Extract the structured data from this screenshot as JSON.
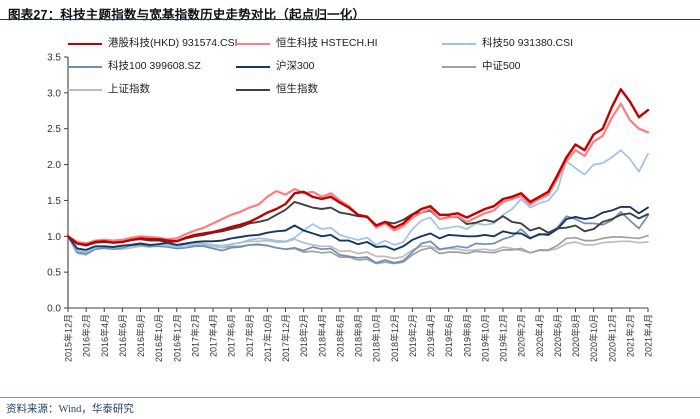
{
  "header": {
    "title": "图表27：科技主题指数与宽基指数历史走势对比（起点归一化）"
  },
  "footer": {
    "source_label": "资料来源：Wind，华泰研究"
  },
  "colors": {
    "title_rule": "#17375E",
    "axis": "#404040",
    "tick_label": "#333333",
    "footer_rule": "#8496A9",
    "footer_text": "#24456E"
  },
  "chart_data": {
    "type": "line",
    "title": "科技主题指数与宽基指数历史走势对比（起点归一化）",
    "xlabel": "",
    "ylabel": "",
    "ylim": [
      0.0,
      3.5
    ],
    "grid": false,
    "legend_position": "top",
    "y_tick_labels": [
      "0.0",
      "0.5",
      "1.0",
      "1.5",
      "2.0",
      "2.5",
      "3.0",
      "3.5"
    ],
    "x_tick_labels": [
      "2015年12月",
      "2016年2月",
      "2016年4月",
      "2016年6月",
      "2016年8月",
      "2016年10月",
      "2016年12月",
      "2017年2月",
      "2017年4月",
      "2017年6月",
      "2017年8月",
      "2017年10月",
      "2017年12月",
      "2018年2月",
      "2018年4月",
      "2018年6月",
      "2018年8月",
      "2018年10月",
      "2018年12月",
      "2019年2月",
      "2019年4月",
      "2019年6月",
      "2019年8月",
      "2019年10月",
      "2019年12月",
      "2020年2月",
      "2020年4月",
      "2020年6月",
      "2020年8月",
      "2020年10月",
      "2020年12月",
      "2021年2月",
      "2021年4月"
    ],
    "x_is_monthly_from": "2015年12月",
    "x_label_every_n_points": 2,
    "series": [
      {
        "name": "港股科技(HKD) 931574.CSI",
        "color": "#C00000",
        "width": 2.4,
        "values": [
          1.0,
          0.9,
          0.88,
          0.92,
          0.93,
          0.91,
          0.92,
          0.95,
          0.97,
          0.96,
          0.96,
          0.94,
          0.93,
          0.98,
          1.02,
          1.04,
          1.06,
          1.09,
          1.13,
          1.16,
          1.2,
          1.26,
          1.33,
          1.38,
          1.45,
          1.6,
          1.62,
          1.55,
          1.52,
          1.55,
          1.47,
          1.4,
          1.3,
          1.27,
          1.15,
          1.2,
          1.12,
          1.18,
          1.3,
          1.38,
          1.42,
          1.3,
          1.3,
          1.32,
          1.26,
          1.32,
          1.38,
          1.42,
          1.52,
          1.55,
          1.6,
          1.48,
          1.55,
          1.62,
          1.85,
          2.1,
          2.28,
          2.2,
          2.42,
          2.5,
          2.8,
          3.05,
          2.88,
          2.66,
          2.76
        ]
      },
      {
        "name": "恒生科技 HSTECH.HI",
        "color": "#FF7C80",
        "width": 2.2,
        "values": [
          1.0,
          0.92,
          0.9,
          0.94,
          0.95,
          0.94,
          0.95,
          0.98,
          1.0,
          0.99,
          0.98,
          0.96,
          0.97,
          1.03,
          1.08,
          1.12,
          1.18,
          1.24,
          1.3,
          1.34,
          1.4,
          1.44,
          1.55,
          1.63,
          1.58,
          1.66,
          1.6,
          1.62,
          1.55,
          1.6,
          1.5,
          1.42,
          1.3,
          1.28,
          1.12,
          1.18,
          1.08,
          1.14,
          1.26,
          1.33,
          1.38,
          1.24,
          1.26,
          1.28,
          1.2,
          1.26,
          1.32,
          1.36,
          1.48,
          1.52,
          1.56,
          1.44,
          1.52,
          1.58,
          1.8,
          2.05,
          2.2,
          2.12,
          2.32,
          2.4,
          2.65,
          2.85,
          2.62,
          2.5,
          2.45
        ]
      },
      {
        "name": "科技50 931380.CSI",
        "color": "#9DC3E6",
        "width": 1.7,
        "values": [
          1.0,
          0.8,
          0.78,
          0.84,
          0.86,
          0.84,
          0.86,
          0.89,
          0.9,
          0.88,
          0.88,
          0.87,
          0.85,
          0.87,
          0.89,
          0.89,
          0.86,
          0.84,
          0.89,
          0.91,
          0.95,
          0.97,
          0.96,
          0.94,
          0.93,
          0.98,
          1.08,
          1.17,
          1.1,
          1.12,
          1.02,
          0.98,
          0.95,
          0.98,
          0.88,
          0.94,
          0.88,
          0.92,
          1.1,
          1.22,
          1.26,
          1.1,
          1.12,
          1.14,
          1.1,
          1.18,
          1.16,
          1.18,
          1.3,
          1.38,
          1.52,
          1.4,
          1.46,
          1.5,
          1.65,
          2.05,
          1.95,
          1.86,
          2.0,
          2.02,
          2.1,
          2.2,
          2.08,
          1.9,
          2.15
        ]
      },
      {
        "name": "科技100 399608.SZ",
        "color": "#6F8EB5",
        "width": 1.7,
        "values": [
          1.0,
          0.78,
          0.76,
          0.82,
          0.84,
          0.82,
          0.84,
          0.87,
          0.88,
          0.86,
          0.86,
          0.85,
          0.83,
          0.84,
          0.86,
          0.86,
          0.83,
          0.8,
          0.84,
          0.85,
          0.88,
          0.89,
          0.87,
          0.84,
          0.82,
          0.84,
          0.8,
          0.85,
          0.82,
          0.83,
          0.74,
          0.72,
          0.7,
          0.71,
          0.63,
          0.67,
          0.63,
          0.66,
          0.78,
          0.9,
          0.93,
          0.82,
          0.84,
          0.86,
          0.84,
          0.9,
          0.89,
          0.9,
          0.96,
          1.0,
          1.1,
          0.98,
          1.02,
          1.04,
          1.12,
          1.28,
          1.24,
          1.18,
          1.18,
          1.16,
          1.22,
          1.34,
          1.22,
          1.11,
          1.29
        ]
      },
      {
        "name": "沪深300",
        "color": "#17375E",
        "width": 1.9,
        "values": [
          1.0,
          0.83,
          0.81,
          0.86,
          0.86,
          0.85,
          0.87,
          0.88,
          0.9,
          0.88,
          0.89,
          0.91,
          0.88,
          0.9,
          0.92,
          0.93,
          0.93,
          0.94,
          0.97,
          0.99,
          1.01,
          1.02,
          1.05,
          1.07,
          1.08,
          1.15,
          1.08,
          1.04,
          1.0,
          1.02,
          0.94,
          0.94,
          0.89,
          0.92,
          0.85,
          0.86,
          0.81,
          0.86,
          0.95,
          1.0,
          1.04,
          0.97,
          1.02,
          1.01,
          1.0,
          1.0,
          1.02,
          1.0,
          1.07,
          1.04,
          1.04,
          0.97,
          1.03,
          1.02,
          1.1,
          1.24,
          1.27,
          1.24,
          1.26,
          1.33,
          1.36,
          1.41,
          1.41,
          1.32,
          1.4
        ]
      },
      {
        "name": "中证500",
        "color": "#A0A0A0",
        "width": 1.7,
        "values": [
          1.0,
          0.78,
          0.75,
          0.83,
          0.85,
          0.83,
          0.85,
          0.87,
          0.89,
          0.87,
          0.88,
          0.9,
          0.87,
          0.87,
          0.88,
          0.88,
          0.86,
          0.84,
          0.86,
          0.86,
          0.88,
          0.88,
          0.87,
          0.84,
          0.82,
          0.83,
          0.78,
          0.79,
          0.77,
          0.78,
          0.71,
          0.71,
          0.67,
          0.68,
          0.62,
          0.64,
          0.62,
          0.64,
          0.74,
          0.81,
          0.84,
          0.76,
          0.78,
          0.78,
          0.76,
          0.79,
          0.78,
          0.77,
          0.81,
          0.81,
          0.83,
          0.77,
          0.81,
          0.81,
          0.87,
          0.97,
          0.98,
          0.94,
          0.94,
          0.97,
          0.99,
          0.99,
          0.98,
          0.97,
          1.01
        ]
      },
      {
        "name": "上证指数",
        "color": "#BCBCBC",
        "width": 1.7,
        "values": [
          1.0,
          0.76,
          0.74,
          0.82,
          0.83,
          0.82,
          0.82,
          0.84,
          0.86,
          0.85,
          0.87,
          0.89,
          0.87,
          0.88,
          0.9,
          0.9,
          0.88,
          0.87,
          0.89,
          0.91,
          0.93,
          0.93,
          0.94,
          0.92,
          0.92,
          0.96,
          0.91,
          0.88,
          0.86,
          0.86,
          0.79,
          0.8,
          0.76,
          0.78,
          0.72,
          0.72,
          0.69,
          0.72,
          0.81,
          0.86,
          0.86,
          0.81,
          0.83,
          0.82,
          0.8,
          0.81,
          0.82,
          0.8,
          0.85,
          0.83,
          0.8,
          0.77,
          0.8,
          0.8,
          0.83,
          0.9,
          0.92,
          0.88,
          0.88,
          0.91,
          0.92,
          0.93,
          0.93,
          0.91,
          0.92
        ]
      },
      {
        "name": "恒生指数",
        "color": "#404040",
        "width": 1.9,
        "values": [
          1.0,
          0.9,
          0.87,
          0.91,
          0.92,
          0.91,
          0.94,
          0.95,
          0.96,
          0.94,
          0.94,
          0.92,
          0.93,
          0.97,
          1.0,
          1.02,
          1.05,
          1.07,
          1.1,
          1.13,
          1.18,
          1.2,
          1.23,
          1.3,
          1.37,
          1.48,
          1.44,
          1.4,
          1.38,
          1.4,
          1.33,
          1.31,
          1.28,
          1.27,
          1.15,
          1.2,
          1.18,
          1.23,
          1.31,
          1.33,
          1.36,
          1.24,
          1.27,
          1.27,
          1.17,
          1.19,
          1.23,
          1.2,
          1.28,
          1.2,
          1.18,
          1.08,
          1.12,
          1.05,
          1.11,
          1.12,
          1.15,
          1.07,
          1.1,
          1.2,
          1.24,
          1.3,
          1.32,
          1.25,
          1.31
        ]
      }
    ],
    "legend_grid_order": [
      0,
      1,
      2,
      3,
      4,
      5,
      6,
      7
    ]
  }
}
